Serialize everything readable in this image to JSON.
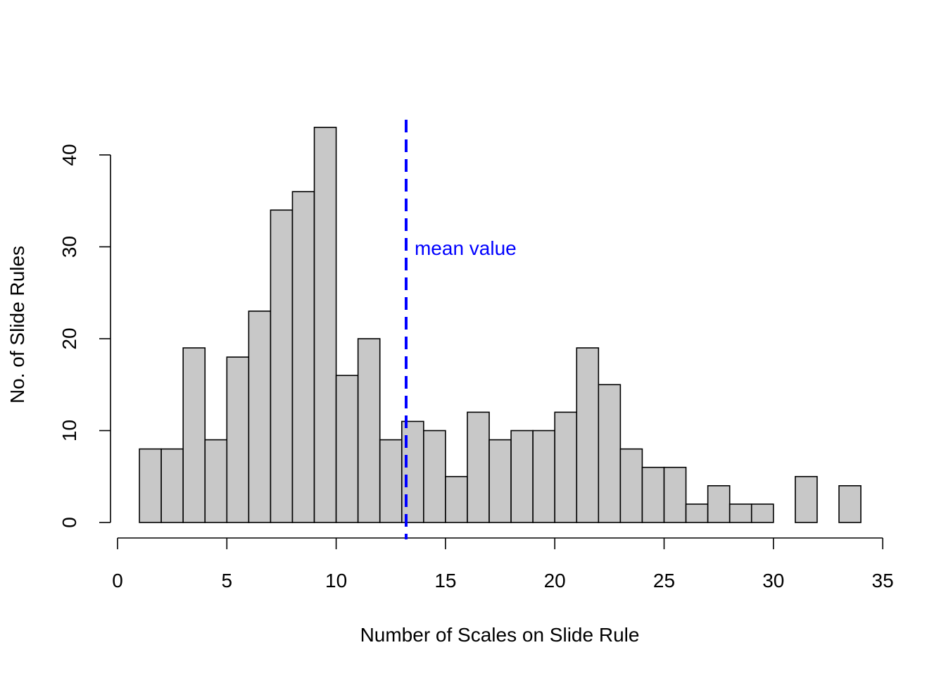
{
  "chart_data": {
    "type": "histogram",
    "title": "",
    "xlabel": "Number of Scales on Slide Rule",
    "ylabel": "No. of Slide Rules",
    "xlim": [
      0,
      35
    ],
    "ylim": [
      0,
      43
    ],
    "x_ticks": [
      0,
      5,
      10,
      15,
      20,
      25,
      30,
      35
    ],
    "y_ticks": [
      0,
      10,
      20,
      30,
      40
    ],
    "grid": false,
    "bins": [
      {
        "x0": 1,
        "x1": 2,
        "count": 8
      },
      {
        "x0": 2,
        "x1": 3,
        "count": 8
      },
      {
        "x0": 3,
        "x1": 4,
        "count": 19
      },
      {
        "x0": 4,
        "x1": 5,
        "count": 9
      },
      {
        "x0": 5,
        "x1": 6,
        "count": 18
      },
      {
        "x0": 6,
        "x1": 7,
        "count": 23
      },
      {
        "x0": 7,
        "x1": 8,
        "count": 34
      },
      {
        "x0": 8,
        "x1": 9,
        "count": 36
      },
      {
        "x0": 9,
        "x1": 10,
        "count": 43
      },
      {
        "x0": 10,
        "x1": 11,
        "count": 16
      },
      {
        "x0": 11,
        "x1": 12,
        "count": 20
      },
      {
        "x0": 12,
        "x1": 13,
        "count": 9
      },
      {
        "x0": 13,
        "x1": 14,
        "count": 11
      },
      {
        "x0": 14,
        "x1": 15,
        "count": 10
      },
      {
        "x0": 15,
        "x1": 16,
        "count": 5
      },
      {
        "x0": 16,
        "x1": 17,
        "count": 12
      },
      {
        "x0": 17,
        "x1": 18,
        "count": 9
      },
      {
        "x0": 18,
        "x1": 19,
        "count": 10
      },
      {
        "x0": 19,
        "x1": 20,
        "count": 10
      },
      {
        "x0": 20,
        "x1": 21,
        "count": 12
      },
      {
        "x0": 21,
        "x1": 22,
        "count": 19
      },
      {
        "x0": 22,
        "x1": 23,
        "count": 15
      },
      {
        "x0": 23,
        "x1": 24,
        "count": 8
      },
      {
        "x0": 24,
        "x1": 25,
        "count": 6
      },
      {
        "x0": 25,
        "x1": 26,
        "count": 6
      },
      {
        "x0": 26,
        "x1": 27,
        "count": 2
      },
      {
        "x0": 27,
        "x1": 28,
        "count": 4
      },
      {
        "x0": 28,
        "x1": 29,
        "count": 2
      },
      {
        "x0": 29,
        "x1": 30,
        "count": 2
      },
      {
        "x0": 30,
        "x1": 31,
        "count": 0
      },
      {
        "x0": 31,
        "x1": 32,
        "count": 5
      },
      {
        "x0": 32,
        "x1": 33,
        "count": 0
      },
      {
        "x0": 33,
        "x1": 34,
        "count": 4
      }
    ],
    "mean_line": {
      "x": 13.2,
      "label": "mean value",
      "color": "#0000ff",
      "style": "dashed"
    },
    "bar_fill": "#c8c8c8",
    "bar_stroke": "#000000"
  }
}
